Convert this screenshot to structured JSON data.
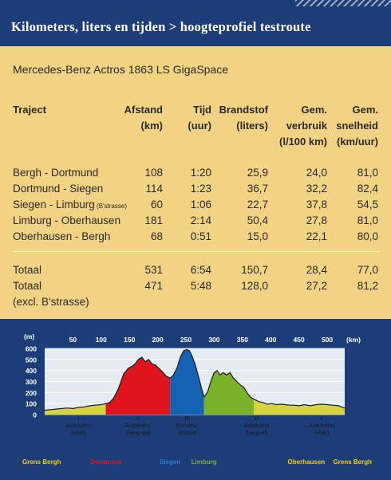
{
  "header": {
    "title": "Kilometers, liters en tijden > hoogteprofiel testroute"
  },
  "subtitle": "Mercedes-Benz Actros 1863 LS GigaSpace",
  "table": {
    "columns": [
      [
        "Traject"
      ],
      [
        "Afstand",
        "(km)"
      ],
      [
        "Tijd",
        "(uur)"
      ],
      [
        "Brandstof",
        "(liters)"
      ],
      [
        "Gem.",
        "verbruik",
        "(l/100 km)"
      ],
      [
        "Gem.",
        "snelheid",
        "(km/uur)"
      ]
    ],
    "rows": [
      {
        "traject": "Bergh - Dortmund",
        "note": "",
        "afstand": "108",
        "tijd": "1:20",
        "brandstof": "25,9",
        "verbruik": "24,0",
        "snelheid": "81,0"
      },
      {
        "traject": "Dortmund - Siegen",
        "note": "",
        "afstand": "114",
        "tijd": "1:23",
        "brandstof": "36,7",
        "verbruik": "32,2",
        "snelheid": "82,4"
      },
      {
        "traject": "Siegen - Limburg",
        "note": "(B'strasse)",
        "afstand": "60",
        "tijd": "1:06",
        "brandstof": "22,7",
        "verbruik": "37,8",
        "snelheid": "54,5"
      },
      {
        "traject": "Limburg - Oberhausen",
        "note": "",
        "afstand": "181",
        "tijd": "2:14",
        "brandstof": "50,4",
        "verbruik": "27,8",
        "snelheid": "81,0"
      },
      {
        "traject": "Oberhausen - Bergh",
        "note": "",
        "afstand": "68",
        "tijd": "0:51",
        "brandstof": "15,0",
        "verbruik": "22,1",
        "snelheid": "80,0"
      }
    ],
    "totals": [
      {
        "traject": "Totaal",
        "afstand": "531",
        "tijd": "6:54",
        "brandstof": "150,7",
        "verbruik": "28,4",
        "snelheid": "77,0"
      },
      {
        "traject": "Totaal",
        "afstand": "471",
        "tijd": "5:48",
        "brandstof": "128,0",
        "verbruik": "27,2",
        "snelheid": "81,2"
      }
    ],
    "totals_note": "(excl. B'strasse)"
  },
  "chart_data": {
    "type": "area",
    "xlabel": "(km)",
    "ylabel": "(m)",
    "x_ticks": [
      50,
      100,
      150,
      200,
      250,
      300,
      350,
      400,
      450,
      500
    ],
    "y_ticks": [
      0,
      100,
      200,
      300,
      400,
      500,
      600
    ],
    "xlim": [
      0,
      531
    ],
    "ylim": [
      0,
      600
    ],
    "colors": {
      "yellow": "#d6d43c",
      "red": "#e0141c",
      "blue": "#1561b3",
      "green": "#7ab22a",
      "plot_bg": "#e4ebf1"
    },
    "segments": [
      {
        "color": "yellow",
        "x_start": 0,
        "x_end": 108
      },
      {
        "color": "red",
        "x_start": 108,
        "x_end": 222
      },
      {
        "color": "blue",
        "x_start": 222,
        "x_end": 282
      },
      {
        "color": "green",
        "x_start": 282,
        "x_end": 370
      },
      {
        "color": "yellow",
        "x_start": 370,
        "x_end": 531
      }
    ],
    "profile": [
      [
        0,
        40
      ],
      [
        10,
        45
      ],
      [
        20,
        50
      ],
      [
        30,
        55
      ],
      [
        40,
        60
      ],
      [
        50,
        55
      ],
      [
        60,
        65
      ],
      [
        70,
        70
      ],
      [
        80,
        80
      ],
      [
        90,
        85
      ],
      [
        100,
        90
      ],
      [
        108,
        100
      ],
      [
        115,
        110
      ],
      [
        122,
        150
      ],
      [
        130,
        230
      ],
      [
        140,
        370
      ],
      [
        148,
        420
      ],
      [
        155,
        440
      ],
      [
        160,
        460
      ],
      [
        166,
        500
      ],
      [
        172,
        520
      ],
      [
        178,
        480
      ],
      [
        184,
        500
      ],
      [
        190,
        460
      ],
      [
        196,
        450
      ],
      [
        202,
        420
      ],
      [
        208,
        390
      ],
      [
        215,
        350
      ],
      [
        222,
        330
      ],
      [
        228,
        360
      ],
      [
        234,
        420
      ],
      [
        240,
        520
      ],
      [
        246,
        580
      ],
      [
        252,
        590
      ],
      [
        256,
        580
      ],
      [
        260,
        540
      ],
      [
        266,
        460
      ],
      [
        272,
        350
      ],
      [
        278,
        230
      ],
      [
        282,
        160
      ],
      [
        288,
        200
      ],
      [
        294,
        300
      ],
      [
        300,
        380
      ],
      [
        305,
        400
      ],
      [
        310,
        360
      ],
      [
        316,
        380
      ],
      [
        322,
        360
      ],
      [
        328,
        380
      ],
      [
        334,
        330
      ],
      [
        340,
        300
      ],
      [
        346,
        270
      ],
      [
        352,
        250
      ],
      [
        358,
        200
      ],
      [
        364,
        160
      ],
      [
        370,
        140
      ],
      [
        378,
        120
      ],
      [
        386,
        110
      ],
      [
        394,
        95
      ],
      [
        402,
        100
      ],
      [
        410,
        90
      ],
      [
        418,
        95
      ],
      [
        426,
        90
      ],
      [
        434,
        85
      ],
      [
        442,
        85
      ],
      [
        450,
        80
      ],
      [
        460,
        90
      ],
      [
        470,
        80
      ],
      [
        480,
        90
      ],
      [
        490,
        95
      ],
      [
        500,
        90
      ],
      [
        510,
        85
      ],
      [
        520,
        80
      ],
      [
        531,
        60
      ]
    ],
    "road_labels": [
      {
        "x": 60,
        "lines": [
          "I",
          "Autobahn",
          "(vlak)"
        ]
      },
      {
        "x": 165,
        "lines": [
          "II",
          "Autobahn",
          "(berg-op)"
        ]
      },
      {
        "x": 252,
        "lines": [
          "III",
          "Bundes-",
          "strasse"
        ]
      },
      {
        "x": 375,
        "lines": [
          "VI",
          "Autobahn",
          "(berg-af)"
        ]
      },
      {
        "x": 490,
        "lines": [
          "V",
          "Autobahn",
          "(vlak)"
        ]
      }
    ],
    "places": [
      {
        "name": "Grens Bergh",
        "x": 0,
        "color": "#f5d000"
      },
      {
        "name": "Dortmund",
        "x": 108,
        "color": "#e0141c"
      },
      {
        "name": "Siegen",
        "x": 222,
        "color": "#2e7ad6"
      },
      {
        "name": "Limburg",
        "x": 282,
        "color": "#7ab22a"
      },
      {
        "name": "Oberhausen",
        "x": 463,
        "color": "#f5d000"
      },
      {
        "name": "Grens Bergh",
        "x": 531,
        "color": "#f5d000"
      }
    ]
  }
}
